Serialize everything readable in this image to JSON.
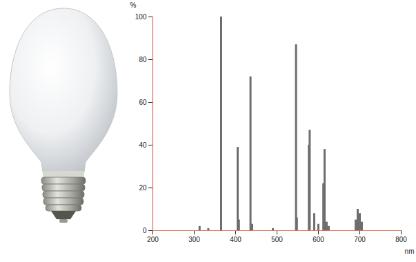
{
  "chart_data": {
    "type": "bar",
    "x_label": "nm",
    "y_label": "%",
    "x": [
      313,
      334,
      365,
      405,
      408,
      436,
      440,
      490,
      546,
      548,
      577,
      579,
      590,
      600,
      612,
      615,
      620,
      625,
      690,
      695,
      700,
      705
    ],
    "values": [
      2,
      1,
      100,
      39,
      5,
      72,
      3,
      1,
      87,
      6,
      40,
      47,
      8,
      3,
      22,
      38,
      4,
      2,
      5,
      10,
      8,
      4
    ],
    "color": "#6e6e6e",
    "xlim": [
      200,
      800
    ],
    "xticks": [
      200,
      300,
      400,
      500,
      600,
      700,
      800
    ],
    "ylim": [
      0,
      100
    ],
    "yticks": [
      0,
      20,
      40,
      60,
      80,
      100
    ],
    "grid": false
  }
}
